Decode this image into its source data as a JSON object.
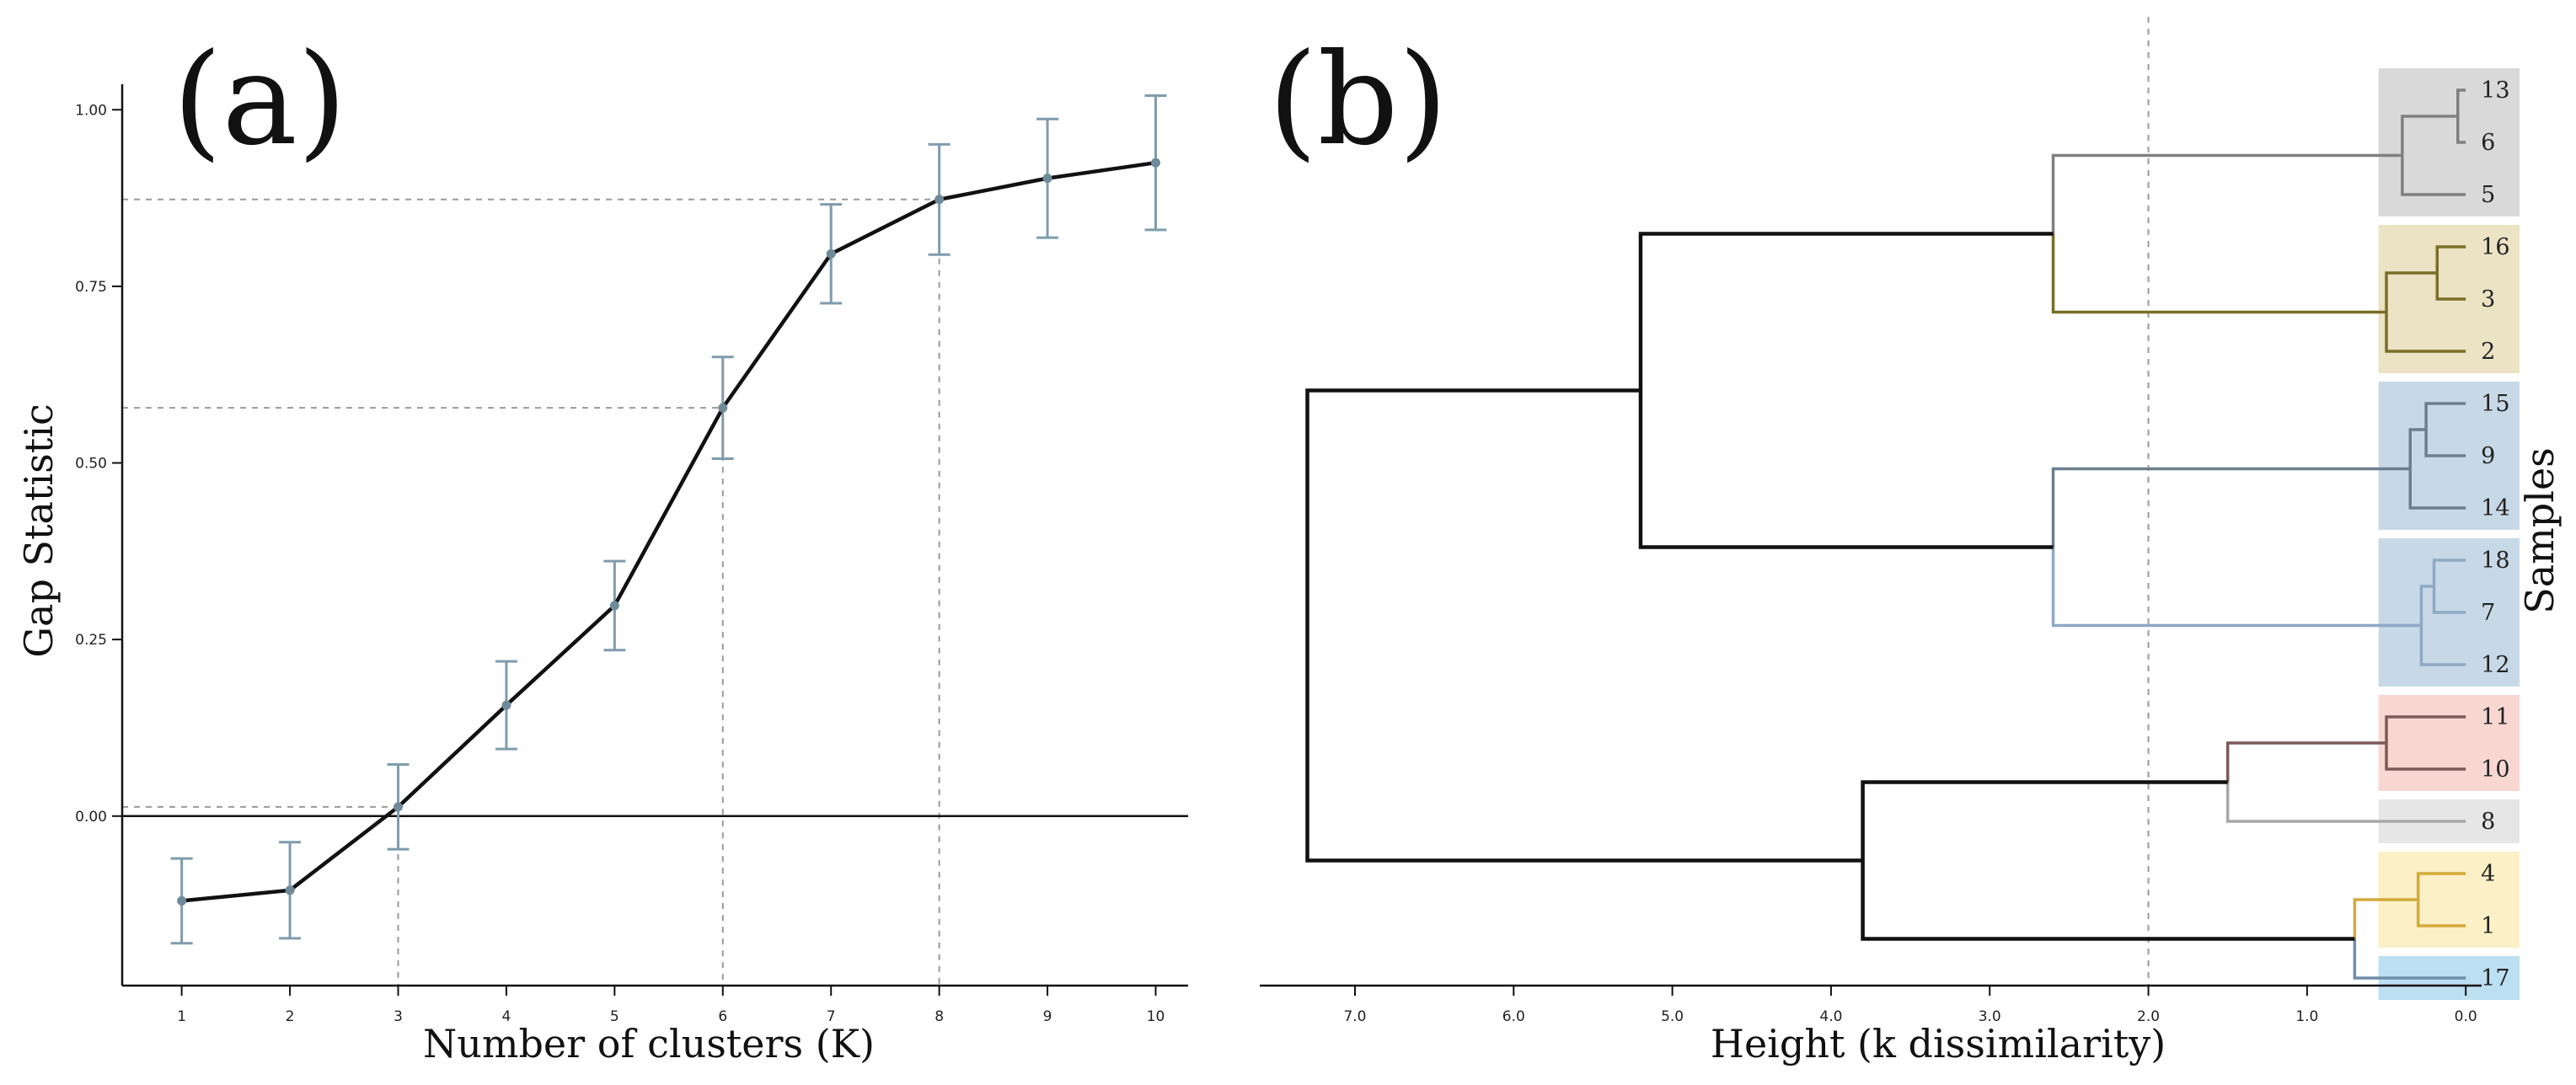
{
  "chart_data": [
    {
      "type": "line",
      "panel_label": "(a)",
      "xlabel": "Number of clusters (K)",
      "ylabel": "Gap Statistic",
      "x": [
        1,
        2,
        3,
        4,
        5,
        6,
        7,
        8,
        9,
        10
      ],
      "series": [
        {
          "values": [
            -0.12,
            -0.105,
            0.013,
            0.157,
            0.298,
            0.578,
            0.796,
            0.873,
            0.903,
            0.925
          ],
          "err": [
            0.06,
            0.068,
            0.06,
            0.062,
            0.063,
            0.072,
            0.07,
            0.078,
            0.084,
            0.095
          ]
        }
      ],
      "xticks": [
        "1",
        "2",
        "3",
        "4",
        "5",
        "6",
        "7",
        "8",
        "9",
        "10"
      ],
      "yticks": [
        "0.00",
        "0.25",
        "0.50",
        "0.75",
        "1.00"
      ],
      "ytick_values": [
        0,
        0.25,
        0.5,
        0.75,
        1.0
      ],
      "xlim": [
        0.45,
        10.3
      ],
      "ylim": [
        -0.24,
        1.06
      ],
      "reference_lines": [
        {
          "k": 3,
          "gap": 0.013
        },
        {
          "k": 6,
          "gap": 0.578
        },
        {
          "k": 8,
          "gap": 0.873
        }
      ],
      "colors": {
        "line": "#111111",
        "errorbar": "#7f9cad",
        "point": "#6f8a99",
        "ref": "#9a9a9a"
      }
    },
    {
      "type": "dendrogram",
      "panel_label": "(b)",
      "xlabel": "Height (k dissimilarity)",
      "ylabel": "Samples",
      "xticks": [
        "7.0",
        "6.0",
        "5.0",
        "4.0",
        "3.0",
        "2.0",
        "1.0",
        "0.0"
      ],
      "xtick_values": [
        7,
        6,
        5,
        4,
        3,
        2,
        1,
        0
      ],
      "xlim": [
        7.6,
        -0.1
      ],
      "cut_height": 2.0,
      "leaves": [
        "13",
        "6",
        "5",
        "16",
        "3",
        "2",
        "15",
        "9",
        "14",
        "18",
        "7",
        "12",
        "11",
        "10",
        "8",
        "4",
        "1",
        "17"
      ],
      "merges": [
        {
          "id": "a",
          "left": "13",
          "right": "6",
          "height": 0.05,
          "color": "#808080"
        },
        {
          "id": "b",
          "left": "a",
          "right": "5",
          "height": 0.4,
          "color": "#808080"
        },
        {
          "id": "c",
          "left": "16",
          "right": "3",
          "height": 0.18,
          "color": "#7a6e28"
        },
        {
          "id": "d",
          "left": "c",
          "right": "2",
          "height": 0.5,
          "color": "#7a6e28"
        },
        {
          "id": "e",
          "left": "b",
          "right": "d",
          "height": 2.6,
          "color_left": "#808080",
          "color_right": "#7a6e28"
        },
        {
          "id": "f",
          "left": "15",
          "right": "9",
          "height": 0.25,
          "color": "#6b7f8e"
        },
        {
          "id": "g",
          "left": "f",
          "right": "14",
          "height": 0.35,
          "color": "#6b7f8e"
        },
        {
          "id": "h",
          "left": "18",
          "right": "7",
          "height": 0.2,
          "color": "#8fa8c4"
        },
        {
          "id": "i",
          "left": "h",
          "right": "12",
          "height": 0.28,
          "color": "#8fa8c4"
        },
        {
          "id": "j",
          "left": "g",
          "right": "i",
          "height": 2.6,
          "color_left": "#6b7f8e",
          "color_right": "#8fa8c4"
        },
        {
          "id": "k",
          "left": "e",
          "right": "j",
          "height": 5.2,
          "color": "#111111"
        },
        {
          "id": "l",
          "left": "11",
          "right": "10",
          "height": 0.5,
          "color": "#7d5a5a"
        },
        {
          "id": "m",
          "left": "l",
          "right": "8",
          "height": 1.5,
          "color_left": "#7d5a5a",
          "color_right": "#a8a8a8"
        },
        {
          "id": "n",
          "left": "4",
          "right": "1",
          "height": 0.3,
          "color": "#d4aa3a"
        },
        {
          "id": "o",
          "left": "n",
          "right": "17",
          "height": 0.7,
          "color_left": "#d4aa3a",
          "color_right": "#6f8fa8"
        },
        {
          "id": "p",
          "left": "m",
          "right": "o",
          "height": 3.8,
          "color": "#111111"
        },
        {
          "id": "q",
          "left": "k",
          "right": "p",
          "height": 7.3,
          "color": "#111111"
        }
      ],
      "cluster_boxes": [
        {
          "leaves": [
            "13",
            "5"
          ],
          "color": "#d9d9d9"
        },
        {
          "leaves": [
            "16",
            "2"
          ],
          "color": "#ece3c4"
        },
        {
          "leaves": [
            "15",
            "14"
          ],
          "color": "#c7d9e6"
        },
        {
          "leaves": [
            "18",
            "12"
          ],
          "color": "#c7d9e6"
        },
        {
          "leaves": [
            "11",
            "10"
          ],
          "color": "#f8d6d2"
        },
        {
          "leaves": [
            "8",
            "8"
          ],
          "color": "#e6e6e6"
        },
        {
          "leaves": [
            "4",
            "1"
          ],
          "color": "#fbf0c6"
        },
        {
          "leaves": [
            "17",
            "17"
          ],
          "color": "#bcdff2"
        }
      ]
    }
  ]
}
